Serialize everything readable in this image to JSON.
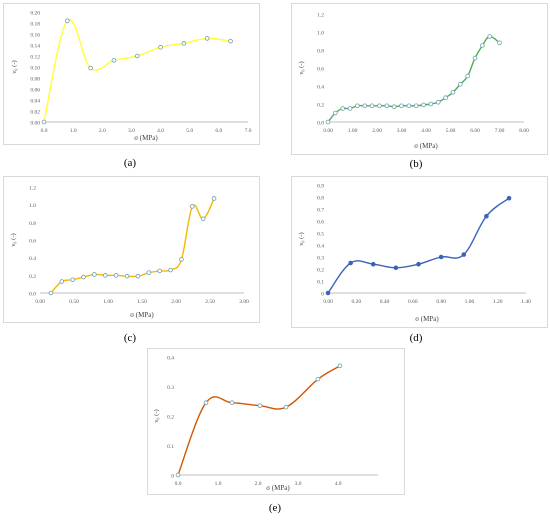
{
  "chart_data": [
    {
      "id": "a",
      "type": "line",
      "caption": "(a)",
      "xlabel": "σ (MPa)",
      "ylabel": "ν₀ (-)",
      "xlim": [
        0,
        7
      ],
      "ylim": [
        0,
        0.2
      ],
      "xticks": [
        0,
        1,
        2,
        3,
        4,
        5,
        6,
        7
      ],
      "xtick_labels": [
        "0.0",
        "1.0",
        "2.0",
        "3.0",
        "4.0",
        "5.0",
        "6.0",
        "7.0"
      ],
      "yticks": [
        0,
        0.02,
        0.04,
        0.06,
        0.08,
        0.1,
        0.12,
        0.14,
        0.16,
        0.18,
        0.2
      ],
      "ytick_labels": [
        "0.00",
        "0.02",
        "0.04",
        "0.06",
        "0.08",
        "0.10",
        "0.12",
        "0.14",
        "0.16",
        "0.18",
        "0.20"
      ],
      "color": "#ffff33",
      "marker_fill": "#ffffff",
      "marker_stroke": "#6a9fb5",
      "series": [
        {
          "x": [
            0.0,
            0.8,
            1.6,
            2.4,
            3.2,
            4.0,
            4.8,
            5.6,
            6.4
          ],
          "y": [
            0.0,
            0.184,
            0.098,
            0.112,
            0.12,
            0.136,
            0.143,
            0.152,
            0.147
          ]
        }
      ]
    },
    {
      "id": "b",
      "type": "line",
      "caption": "(b)",
      "xlabel": "σ (MPa)",
      "ylabel": "ν₀ (-)",
      "xlim": [
        0,
        8
      ],
      "ylim": [
        0,
        1.2
      ],
      "xticks": [
        0,
        1,
        2,
        3,
        4,
        5,
        6,
        7,
        8
      ],
      "xtick_labels": [
        "0.00",
        "1.00",
        "2.00",
        "3.00",
        "4.00",
        "5.00",
        "6.00",
        "7.00",
        "8.00"
      ],
      "yticks": [
        0,
        0.2,
        0.4,
        0.6,
        0.8,
        1.0,
        1.2
      ],
      "ytick_labels": [
        "0.0",
        "0.2",
        "0.4",
        "0.6",
        "0.8",
        "1.0",
        "1.2"
      ],
      "color": "#4caf50",
      "marker_fill": "#ffffff",
      "marker_stroke": "#6a9fb5",
      "series": [
        {
          "x": [
            0.0,
            0.3,
            0.6,
            0.9,
            1.2,
            1.5,
            1.8,
            2.1,
            2.4,
            2.7,
            3.0,
            3.3,
            3.6,
            3.9,
            4.2,
            4.5,
            4.8,
            5.1,
            5.4,
            5.7,
            6.0,
            6.3,
            6.6,
            7.0
          ],
          "y": [
            0.0,
            0.1,
            0.15,
            0.15,
            0.18,
            0.18,
            0.18,
            0.18,
            0.18,
            0.17,
            0.18,
            0.18,
            0.18,
            0.19,
            0.2,
            0.22,
            0.27,
            0.33,
            0.42,
            0.51,
            0.71,
            0.85,
            0.95,
            0.88
          ]
        }
      ]
    },
    {
      "id": "c",
      "type": "line",
      "caption": "(c)",
      "xlabel": "σ (MPa)",
      "ylabel": "ν₀ (-)",
      "xlim": [
        0,
        3
      ],
      "ylim": [
        0,
        1.2
      ],
      "xticks": [
        0,
        0.5,
        1.0,
        1.5,
        2.0,
        2.5,
        3.0
      ],
      "xtick_labels": [
        "0.00",
        "0.50",
        "1.00",
        "1.50",
        "2.00",
        "2.50",
        "3.00"
      ],
      "yticks": [
        0,
        0.2,
        0.4,
        0.6,
        0.8,
        1.0,
        1.2
      ],
      "ytick_labels": [
        "0.0",
        "0.2",
        "0.4",
        "0.6",
        "0.8",
        "1.0",
        "1.2"
      ],
      "color": "#f5b800",
      "marker_fill": "#ffffff",
      "marker_stroke": "#6a9fb5",
      "series": [
        {
          "x": [
            0.16,
            0.32,
            0.48,
            0.64,
            0.8,
            0.96,
            1.12,
            1.28,
            1.44,
            1.6,
            1.76,
            1.92,
            2.08,
            2.24,
            2.4,
            2.56
          ],
          "y": [
            0.0,
            0.13,
            0.15,
            0.18,
            0.21,
            0.2,
            0.2,
            0.19,
            0.19,
            0.23,
            0.25,
            0.26,
            0.38,
            0.98,
            0.84,
            1.07
          ]
        }
      ]
    },
    {
      "id": "d",
      "type": "line",
      "caption": "(d)",
      "xlabel": "σ (MPa)",
      "ylabel": "ν₀ (-)",
      "xlim": [
        0,
        1.4
      ],
      "ylim": [
        0,
        0.9
      ],
      "xticks": [
        0,
        0.2,
        0.4,
        0.6,
        0.8,
        1.0,
        1.2,
        1.4
      ],
      "xtick_labels": [
        "0.00",
        "0.20",
        "0.40",
        "0.60",
        "0.80",
        "1.00",
        "1.20",
        "1.40"
      ],
      "yticks": [
        0,
        0.1,
        0.2,
        0.3,
        0.4,
        0.5,
        0.6,
        0.7,
        0.8,
        0.9
      ],
      "ytick_labels": [
        "0",
        "0.1",
        "0.2",
        "0.3",
        "0.4",
        "0.5",
        "0.6",
        "0.7",
        "0.8",
        "0.9"
      ],
      "color": "#3a64b8",
      "marker_fill": "#3a64b8",
      "marker_stroke": "#3a64b8",
      "series": [
        {
          "x": [
            0.0,
            0.16,
            0.32,
            0.48,
            0.64,
            0.8,
            0.96,
            1.12,
            1.28
          ],
          "y": [
            0.0,
            0.25,
            0.24,
            0.21,
            0.24,
            0.3,
            0.32,
            0.64,
            0.79
          ]
        }
      ]
    },
    {
      "id": "e",
      "type": "line",
      "caption": "(e)",
      "xlabel": "σ (MPa)",
      "ylabel": "ν₀ (-)",
      "xlim": [
        0,
        5
      ],
      "ylim": [
        0,
        0.4
      ],
      "xticks": [
        0,
        1,
        2,
        3,
        4
      ],
      "xtick_labels": [
        "0.0",
        "1.0",
        "2.0",
        "3.0",
        "4.0"
      ],
      "yticks": [
        0,
        0.1,
        0.2,
        0.3,
        0.4
      ],
      "ytick_labels": [
        "0",
        "0.1",
        "0.2",
        "0.3",
        "0.4"
      ],
      "color": "#d45500",
      "marker_fill": "#ffffff",
      "marker_stroke": "#6a9fb5",
      "series": [
        {
          "x": [
            0.0,
            0.7,
            1.35,
            2.05,
            2.7,
            3.5,
            4.05
          ],
          "y": [
            0.0,
            0.245,
            0.245,
            0.235,
            0.23,
            0.325,
            0.37
          ]
        }
      ]
    }
  ]
}
